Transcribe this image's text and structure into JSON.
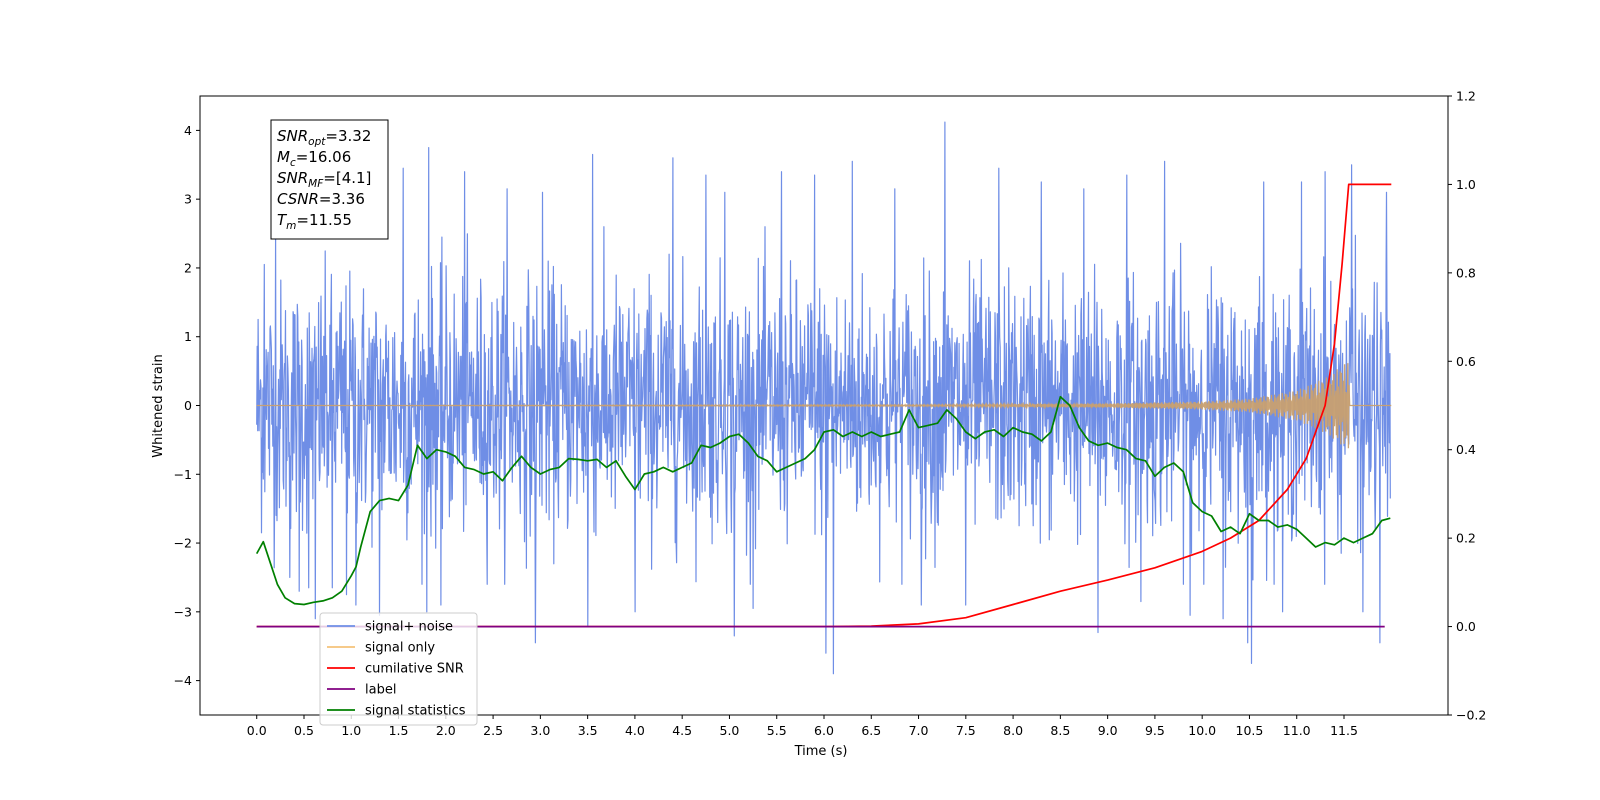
{
  "chart_data": {
    "type": "line",
    "xlabel": "Time (s)",
    "ylabel": "Whitened strain",
    "xlim": [
      -0.6,
      12.6
    ],
    "ylim": [
      -4.5,
      4.5
    ],
    "ylim_right": [
      -0.2,
      1.2
    ],
    "x_ticks": [
      "0.0",
      "0.5",
      "1.0",
      "1.5",
      "2.0",
      "2.5",
      "3.0",
      "3.5",
      "4.0",
      "4.5",
      "5.0",
      "5.5",
      "6.0",
      "6.5",
      "7.0",
      "7.5",
      "8.0",
      "8.5",
      "9.0",
      "9.5",
      "10.0",
      "10.5",
      "11.0",
      "11.5"
    ],
    "y_ticks_left": [
      "4",
      "3",
      "2",
      "1",
      "0",
      "−1",
      "−2",
      "−3",
      "−4"
    ],
    "y_ticks_right": [
      "1.2",
      "1.0",
      "0.8",
      "0.6",
      "0.4",
      "0.2",
      "0.0",
      "−0.2"
    ],
    "annotation": {
      "lines": [
        {
          "base": "SNR",
          "sub": "opt",
          "value": "=3.32"
        },
        {
          "base": "M",
          "sub": "c",
          "value": "=16.06"
        },
        {
          "base": "SNR",
          "sub": "MF",
          "value": "=[4.1]"
        },
        {
          "base": "CSNR",
          "sub": "",
          "value": "=3.36"
        },
        {
          "base": "T",
          "sub": "m",
          "value": "=11.55"
        }
      ]
    },
    "legend": {
      "placement": "lower-left",
      "entries": [
        {
          "label": "signal+ noise",
          "color": "#6f8ee6"
        },
        {
          "label": "signal only",
          "color": "#f5c27a"
        },
        {
          "label": "cumilative SNR",
          "color": "#ff0000"
        },
        {
          "label": "label",
          "color": "#800080"
        },
        {
          "label": "signal statistics",
          "color": "#008000"
        }
      ]
    },
    "series": [
      {
        "name": "signal+ noise",
        "axis": "left",
        "color": "#6f8ee6",
        "x_range": [
          0.0,
          11.99
        ],
        "noise_amplitude": 1.45,
        "peaks": [
          [
            0.08,
            2.05
          ],
          [
            0.2,
            2.5
          ],
          [
            0.35,
            -2.5
          ],
          [
            0.45,
            -2.7
          ],
          [
            0.55,
            -2.65
          ],
          [
            0.62,
            -3.1
          ],
          [
            0.8,
            -2.65
          ],
          [
            0.95,
            -2.75
          ],
          [
            1.05,
            -2.9
          ],
          [
            1.3,
            -3.05
          ],
          [
            1.55,
            3.45
          ],
          [
            1.8,
            -3.0
          ],
          [
            1.82,
            3.75
          ],
          [
            1.95,
            -2.9
          ],
          [
            2.2,
            3.4
          ],
          [
            2.65,
            3.15
          ],
          [
            2.95,
            -3.45
          ],
          [
            3.02,
            3.1
          ],
          [
            3.5,
            -3.2
          ],
          [
            3.55,
            3.65
          ],
          [
            4.0,
            -3.0
          ],
          [
            4.4,
            3.6
          ],
          [
            4.75,
            3.35
          ],
          [
            4.95,
            3.1
          ],
          [
            5.05,
            -3.35
          ],
          [
            5.25,
            -2.95
          ],
          [
            5.55,
            3.4
          ],
          [
            5.9,
            3.35
          ],
          [
            6.02,
            -3.6
          ],
          [
            6.1,
            -3.9
          ],
          [
            6.3,
            3.55
          ],
          [
            6.75,
            3.15
          ],
          [
            7.03,
            -2.9
          ],
          [
            7.28,
            4.12
          ],
          [
            7.5,
            -2.9
          ],
          [
            7.85,
            3.45
          ],
          [
            8.3,
            3.25
          ],
          [
            8.75,
            3.15
          ],
          [
            8.9,
            -3.3
          ],
          [
            9.2,
            3.35
          ],
          [
            9.35,
            -2.85
          ],
          [
            9.6,
            3.55
          ],
          [
            9.87,
            -3.05
          ],
          [
            10.22,
            -3.1
          ],
          [
            10.48,
            -3.45
          ],
          [
            10.52,
            -3.75
          ],
          [
            10.65,
            3.25
          ],
          [
            10.85,
            -3.0
          ],
          [
            11.05,
            3.25
          ],
          [
            11.3,
            3.4
          ],
          [
            11.58,
            3.5
          ],
          [
            11.7,
            -3.0
          ],
          [
            11.88,
            -3.45
          ],
          [
            11.95,
            3.1
          ]
        ]
      },
      {
        "name": "signal only",
        "axis": "left",
        "color": "#f5c27a",
        "opacity": 0.7,
        "envelope_points": [
          [
            0.0,
            0.0
          ],
          [
            7.0,
            0.01
          ],
          [
            9.0,
            0.03
          ],
          [
            10.0,
            0.06
          ],
          [
            10.5,
            0.1
          ],
          [
            11.0,
            0.22
          ],
          [
            11.3,
            0.4
          ],
          [
            11.55,
            0.65
          ],
          [
            11.56,
            0.0
          ],
          [
            12.0,
            0.0
          ]
        ]
      },
      {
        "name": "cumilative SNR",
        "axis": "right",
        "color": "#ff0000",
        "points": [
          [
            0.0,
            0.0
          ],
          [
            6.0,
            0.0
          ],
          [
            6.5,
            0.001
          ],
          [
            7.0,
            0.006
          ],
          [
            7.5,
            0.02
          ],
          [
            8.0,
            0.05
          ],
          [
            8.5,
            0.08
          ],
          [
            9.0,
            0.105
          ],
          [
            9.5,
            0.133
          ],
          [
            10.0,
            0.17
          ],
          [
            10.3,
            0.2
          ],
          [
            10.6,
            0.24
          ],
          [
            10.9,
            0.31
          ],
          [
            11.1,
            0.38
          ],
          [
            11.3,
            0.5
          ],
          [
            11.4,
            0.64
          ],
          [
            11.48,
            0.82
          ],
          [
            11.55,
            1.0
          ],
          [
            12.0,
            1.0
          ]
        ]
      },
      {
        "name": "label",
        "axis": "right",
        "color": "#800080",
        "points": [
          [
            0.0,
            0.0
          ],
          [
            11.93,
            0.0
          ]
        ]
      },
      {
        "name": "signal statistics",
        "axis": "right",
        "color": "#008000",
        "points": [
          [
            0.0,
            0.165
          ],
          [
            0.07,
            0.192
          ],
          [
            0.15,
            0.14
          ],
          [
            0.22,
            0.095
          ],
          [
            0.3,
            0.065
          ],
          [
            0.4,
            0.052
          ],
          [
            0.5,
            0.05
          ],
          [
            0.6,
            0.055
          ],
          [
            0.7,
            0.058
          ],
          [
            0.8,
            0.065
          ],
          [
            0.9,
            0.08
          ],
          [
            1.0,
            0.115
          ],
          [
            1.05,
            0.135
          ],
          [
            1.1,
            0.18
          ],
          [
            1.2,
            0.26
          ],
          [
            1.3,
            0.285
          ],
          [
            1.4,
            0.29
          ],
          [
            1.5,
            0.285
          ],
          [
            1.6,
            0.32
          ],
          [
            1.7,
            0.41
          ],
          [
            1.8,
            0.38
          ],
          [
            1.9,
            0.4
          ],
          [
            2.0,
            0.395
          ],
          [
            2.1,
            0.385
          ],
          [
            2.2,
            0.36
          ],
          [
            2.3,
            0.355
          ],
          [
            2.4,
            0.345
          ],
          [
            2.5,
            0.35
          ],
          [
            2.6,
            0.33
          ],
          [
            2.7,
            0.36
          ],
          [
            2.8,
            0.385
          ],
          [
            2.9,
            0.36
          ],
          [
            3.0,
            0.345
          ],
          [
            3.1,
            0.355
          ],
          [
            3.2,
            0.36
          ],
          [
            3.3,
            0.38
          ],
          [
            3.4,
            0.378
          ],
          [
            3.5,
            0.375
          ],
          [
            3.6,
            0.378
          ],
          [
            3.7,
            0.36
          ],
          [
            3.8,
            0.375
          ],
          [
            3.9,
            0.34
          ],
          [
            4.0,
            0.31
          ],
          [
            4.1,
            0.345
          ],
          [
            4.2,
            0.35
          ],
          [
            4.3,
            0.36
          ],
          [
            4.4,
            0.35
          ],
          [
            4.5,
            0.36
          ],
          [
            4.6,
            0.37
          ],
          [
            4.7,
            0.41
          ],
          [
            4.8,
            0.405
          ],
          [
            4.9,
            0.415
          ],
          [
            5.0,
            0.43
          ],
          [
            5.1,
            0.435
          ],
          [
            5.2,
            0.415
          ],
          [
            5.3,
            0.385
          ],
          [
            5.4,
            0.375
          ],
          [
            5.5,
            0.35
          ],
          [
            5.6,
            0.36
          ],
          [
            5.7,
            0.37
          ],
          [
            5.8,
            0.38
          ],
          [
            5.9,
            0.4
          ],
          [
            6.0,
            0.44
          ],
          [
            6.1,
            0.445
          ],
          [
            6.2,
            0.43
          ],
          [
            6.3,
            0.44
          ],
          [
            6.4,
            0.43
          ],
          [
            6.5,
            0.44
          ],
          [
            6.6,
            0.43
          ],
          [
            6.7,
            0.435
          ],
          [
            6.8,
            0.44
          ],
          [
            6.9,
            0.49
          ],
          [
            7.0,
            0.45
          ],
          [
            7.1,
            0.455
          ],
          [
            7.2,
            0.46
          ],
          [
            7.3,
            0.49
          ],
          [
            7.4,
            0.47
          ],
          [
            7.5,
            0.44
          ],
          [
            7.6,
            0.425
          ],
          [
            7.7,
            0.44
          ],
          [
            7.8,
            0.445
          ],
          [
            7.9,
            0.43
          ],
          [
            8.0,
            0.45
          ],
          [
            8.1,
            0.44
          ],
          [
            8.2,
            0.435
          ],
          [
            8.3,
            0.42
          ],
          [
            8.4,
            0.44
          ],
          [
            8.5,
            0.52
          ],
          [
            8.6,
            0.5
          ],
          [
            8.7,
            0.45
          ],
          [
            8.8,
            0.42
          ],
          [
            8.9,
            0.41
          ],
          [
            9.0,
            0.415
          ],
          [
            9.1,
            0.405
          ],
          [
            9.2,
            0.4
          ],
          [
            9.3,
            0.38
          ],
          [
            9.4,
            0.375
          ],
          [
            9.5,
            0.34
          ],
          [
            9.6,
            0.36
          ],
          [
            9.7,
            0.37
          ],
          [
            9.8,
            0.35
          ],
          [
            9.9,
            0.28
          ],
          [
            10.0,
            0.26
          ],
          [
            10.1,
            0.25
          ],
          [
            10.2,
            0.215
          ],
          [
            10.3,
            0.225
          ],
          [
            10.4,
            0.21
          ],
          [
            10.5,
            0.255
          ],
          [
            10.6,
            0.24
          ],
          [
            10.7,
            0.24
          ],
          [
            10.8,
            0.225
          ],
          [
            10.9,
            0.23
          ],
          [
            11.0,
            0.22
          ],
          [
            11.1,
            0.2
          ],
          [
            11.2,
            0.18
          ],
          [
            11.3,
            0.19
          ],
          [
            11.4,
            0.185
          ],
          [
            11.5,
            0.2
          ],
          [
            11.6,
            0.19
          ],
          [
            11.7,
            0.2
          ],
          [
            11.8,
            0.21
          ],
          [
            11.9,
            0.24
          ],
          [
            11.99,
            0.245
          ]
        ]
      }
    ]
  }
}
